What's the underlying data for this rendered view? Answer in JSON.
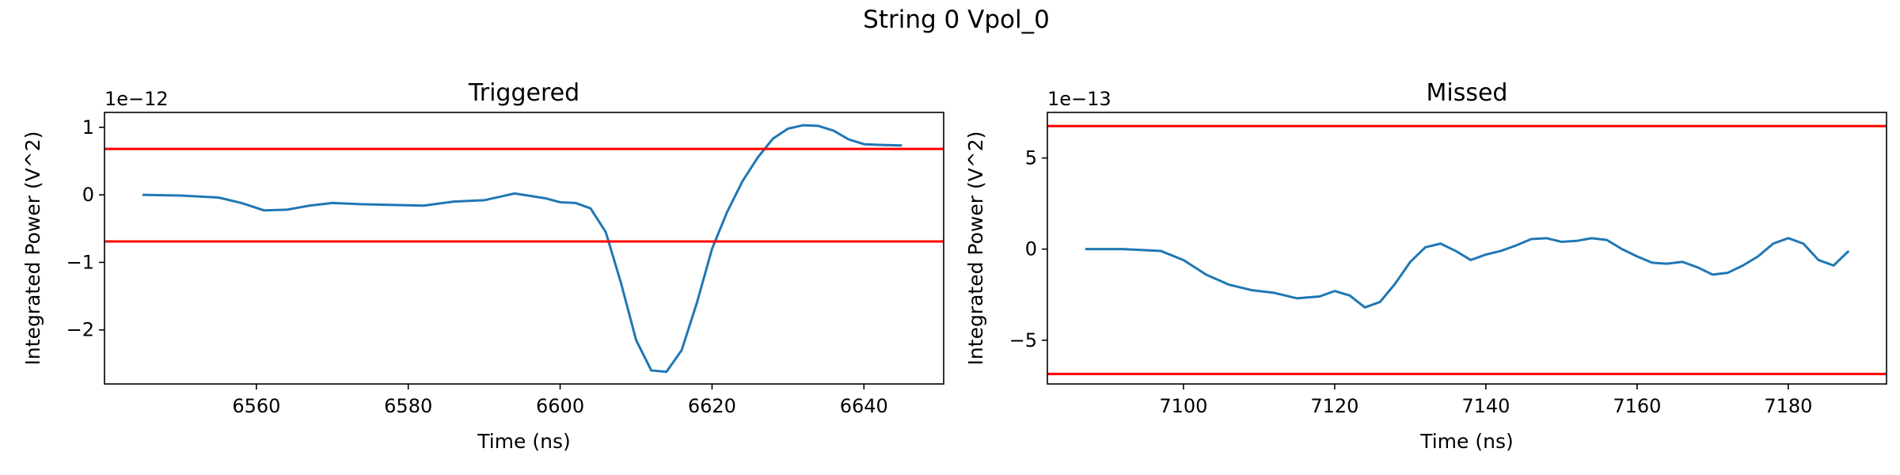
{
  "figure_title": "String 0 Vpol_0",
  "colors": {
    "line": "#1f77b4",
    "threshold": "#ff0000",
    "axes": "#000000",
    "background": "#ffffff"
  },
  "chart_data": [
    {
      "type": "line",
      "title": "Triggered",
      "xlabel": "Time (ns)",
      "ylabel": "Integrated Power (V^2)",
      "offset_label": "1e−12",
      "xlim": [
        6540.0,
        6650.5
      ],
      "ylim": [
        -2.8,
        1.22
      ],
      "xticks": [
        6560,
        6580,
        6600,
        6620,
        6640
      ],
      "yticks": [
        -2,
        -1,
        0,
        1
      ],
      "grid": false,
      "series": [
        {
          "x": [
            6545,
            6550,
            6555,
            6558,
            6561,
            6564,
            6567,
            6570,
            6574,
            6578,
            6582,
            6586,
            6590,
            6594,
            6598,
            6600,
            6602,
            6604,
            6606,
            6608,
            6610,
            6612,
            6614,
            6616,
            6618,
            6620,
            6622,
            6624,
            6626,
            6628,
            6630,
            6632,
            6634,
            6636,
            6638,
            6640,
            6642,
            6645
          ],
          "y": [
            0.0,
            -0.01,
            -0.04,
            -0.12,
            -0.23,
            -0.22,
            -0.16,
            -0.12,
            -0.14,
            -0.15,
            -0.16,
            -0.1,
            -0.08,
            0.02,
            -0.05,
            -0.11,
            -0.12,
            -0.2,
            -0.55,
            -1.3,
            -2.15,
            -2.6,
            -2.62,
            -2.3,
            -1.6,
            -0.8,
            -0.25,
            0.2,
            0.55,
            0.83,
            0.98,
            1.03,
            1.02,
            0.95,
            0.82,
            0.75,
            0.74,
            0.73
          ]
        }
      ],
      "hlines": [
        0.68,
        -0.69
      ]
    },
    {
      "type": "line",
      "title": "Missed",
      "xlabel": "Time (ns)",
      "ylabel": "Integrated Power (V^2)",
      "offset_label": "1e−13",
      "xlim": [
        7082.0,
        7193.0
      ],
      "ylim": [
        -7.4,
        7.5
      ],
      "xticks": [
        7100,
        7120,
        7140,
        7160,
        7180
      ],
      "yticks": [
        -5,
        0,
        5
      ],
      "grid": false,
      "series": [
        {
          "x": [
            7087,
            7092,
            7097,
            7100,
            7103,
            7106,
            7109,
            7112,
            7115,
            7118,
            7120,
            7122,
            7124,
            7126,
            7128,
            7130,
            7132,
            7134,
            7136,
            7138,
            7140,
            7142,
            7144,
            7146,
            7148,
            7150,
            7152,
            7154,
            7156,
            7158,
            7160,
            7162,
            7164,
            7166,
            7168,
            7170,
            7172,
            7174,
            7176,
            7178,
            7180,
            7182,
            7184,
            7186,
            7188
          ],
          "y": [
            0.0,
            0.0,
            -0.1,
            -0.6,
            -1.4,
            -1.95,
            -2.25,
            -2.4,
            -2.7,
            -2.6,
            -2.3,
            -2.55,
            -3.2,
            -2.9,
            -1.9,
            -0.7,
            0.1,
            0.3,
            -0.1,
            -0.6,
            -0.3,
            -0.1,
            0.2,
            0.55,
            0.6,
            0.4,
            0.45,
            0.6,
            0.5,
            0.0,
            -0.4,
            -0.75,
            -0.8,
            -0.7,
            -1.0,
            -1.4,
            -1.3,
            -0.9,
            -0.4,
            0.3,
            0.6,
            0.3,
            -0.6,
            -0.9,
            -0.1
          ]
        }
      ],
      "hlines": [
        6.75,
        -6.85
      ]
    }
  ]
}
